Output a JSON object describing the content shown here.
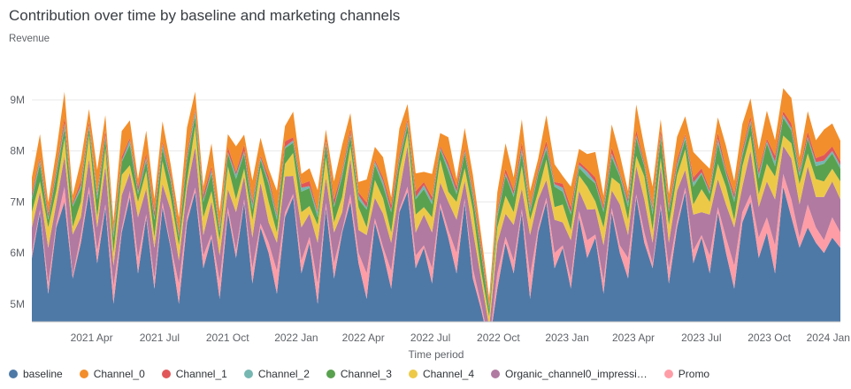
{
  "chart_data": {
    "type": "area",
    "stacked": true,
    "title": "Contribution over time by baseline and marketing channels",
    "ylabel": "Revenue",
    "xlabel": "Time period",
    "legend_position": "bottom",
    "grid": true,
    "y_range": [
      4.65,
      9.85
    ],
    "y_unit": "M",
    "y_ticks": [
      {
        "label": "5M",
        "v": 5
      },
      {
        "label": "6M",
        "v": 6
      },
      {
        "label": "7M",
        "v": 7
      },
      {
        "label": "8M",
        "v": 8
      },
      {
        "label": "9M",
        "v": 9
      }
    ],
    "x_ticks": [
      {
        "label": "2021 Apr",
        "f": 0.074
      },
      {
        "label": "2021 Jul",
        "f": 0.158
      },
      {
        "label": "2021 Oct",
        "f": 0.242
      },
      {
        "label": "2022 Jan",
        "f": 0.327
      },
      {
        "label": "2022 Apr",
        "f": 0.41
      },
      {
        "label": "2022 Jul",
        "f": 0.493
      },
      {
        "label": "2022 Oct",
        "f": 0.577
      },
      {
        "label": "2023 Jan",
        "f": 0.662
      },
      {
        "label": "2023 Apr",
        "f": 0.744
      },
      {
        "label": "2023 Jul",
        "f": 0.828
      },
      {
        "label": "2023 Oct",
        "f": 0.912
      },
      {
        "label": "2024 Jan",
        "f": 0.985
      }
    ],
    "legend": [
      {
        "name": "baseline",
        "color": "#4e79a7"
      },
      {
        "name": "Channel_0",
        "color": "#f28e2b"
      },
      {
        "name": "Channel_1",
        "color": "#e15759"
      },
      {
        "name": "Channel_2",
        "color": "#76b7b2"
      },
      {
        "name": "Channel_3",
        "color": "#59a14f"
      },
      {
        "name": "Channel_4",
        "color": "#edc948"
      },
      {
        "name": "Organic_channel0_impressi…",
        "color": "#b07aa1"
      },
      {
        "name": "Promo",
        "color": "#ff9da7"
      }
    ],
    "series": [
      {
        "name": "baseline",
        "color": "#4e79a7",
        "values": [
          5.9,
          6.8,
          5.2,
          6.5,
          7.0,
          5.5,
          6.2,
          7.2,
          5.8,
          6.9,
          5.0,
          6.4,
          7.1,
          5.6,
          6.7,
          5.3,
          6.9,
          6.1,
          5.0,
          6.6,
          7.2,
          5.7,
          6.3,
          5.1,
          6.8,
          5.9,
          7.0,
          5.4,
          6.5,
          6.0,
          5.2,
          6.7,
          7.1,
          5.6,
          6.2,
          5.0,
          6.9,
          5.5,
          6.4,
          7.0,
          5.8,
          5.1,
          6.6,
          6.0,
          5.3,
          6.8,
          7.2,
          5.7,
          6.1,
          5.4,
          6.9,
          6.3,
          5.6,
          7.0,
          5.5,
          4.9,
          4.2,
          5.3,
          6.2,
          5.6,
          6.8,
          5.1,
          6.4,
          7.0,
          5.7,
          6.1,
          5.3,
          6.7,
          5.9,
          6.3,
          5.2,
          6.8,
          6.0,
          5.5,
          7.1,
          6.2,
          5.7,
          6.9,
          5.4,
          6.5,
          7.2,
          5.8,
          6.3,
          5.6,
          6.8,
          6.0,
          5.3,
          6.6,
          7.0,
          5.9,
          6.4,
          5.6,
          7.3,
          6.7,
          6.1,
          6.5,
          6.2,
          6.0,
          6.3,
          6.1
        ]
      },
      {
        "name": "Promo",
        "color": "#ff9da7",
        "values": [
          0.1,
          0.05,
          0.2,
          0.08,
          0.3,
          0.06,
          0.15,
          0.1,
          0.25,
          0.05,
          0.35,
          0.08,
          0.12,
          0.3,
          0.06,
          0.2,
          0.1,
          0.05,
          0.4,
          0.12,
          0.08,
          0.25,
          0.06,
          0.35,
          0.1,
          0.15,
          0.05,
          0.3,
          0.08,
          0.2,
          0.45,
          0.1,
          0.06,
          0.25,
          0.12,
          0.4,
          0.08,
          0.3,
          0.05,
          0.15,
          0.2,
          0.5,
          0.08,
          0.12,
          0.35,
          0.06,
          0.1,
          0.25,
          0.05,
          0.3,
          0.08,
          0.15,
          0.4,
          0.06,
          0.2,
          0.1,
          0.05,
          0.3,
          0.12,
          0.25,
          0.06,
          0.45,
          0.1,
          0.08,
          0.3,
          0.05,
          0.2,
          0.12,
          0.35,
          0.06,
          0.25,
          0.08,
          0.15,
          0.4,
          0.05,
          0.2,
          0.1,
          0.06,
          0.3,
          0.12,
          0.08,
          0.25,
          0.05,
          0.35,
          0.1,
          0.3,
          0.45,
          0.2,
          0.15,
          0.4,
          0.3,
          0.55,
          0.25,
          0.35,
          0.2,
          0.45,
          0.3,
          0.25,
          0.4,
          0.3
        ]
      },
      {
        "name": "Organic_channel0_impressi…",
        "color": "#b07aa1",
        "values": [
          0.5,
          0.35,
          0.7,
          0.4,
          0.6,
          0.8,
          0.35,
          0.55,
          0.45,
          0.75,
          0.4,
          0.65,
          0.35,
          0.8,
          0.5,
          0.6,
          0.35,
          0.7,
          0.45,
          0.55,
          0.8,
          0.4,
          0.65,
          0.5,
          0.35,
          0.75,
          0.45,
          0.6,
          0.8,
          0.4,
          0.55,
          0.7,
          0.35,
          0.65,
          0.45,
          0.8,
          0.5,
          0.6,
          0.35,
          0.7,
          0.45,
          0.75,
          0.4,
          0.65,
          0.55,
          0.35,
          0.8,
          0.45,
          0.6,
          0.7,
          0.4,
          0.55,
          0.65,
          0.35,
          0.75,
          0.5,
          0.3,
          0.6,
          0.45,
          0.7,
          0.4,
          0.8,
          0.55,
          0.35,
          0.65,
          0.45,
          0.75,
          0.4,
          0.6,
          0.5,
          0.7,
          0.35,
          0.8,
          0.45,
          0.55,
          0.65,
          0.4,
          0.75,
          0.5,
          0.6,
          0.35,
          0.7,
          0.45,
          0.8,
          0.55,
          0.65,
          0.75,
          0.5,
          0.85,
          0.6,
          0.7,
          0.9,
          0.55,
          0.8,
          0.65,
          0.75,
          0.6,
          0.85,
          0.7,
          0.65
        ]
      },
      {
        "name": "Channel_4",
        "color": "#edc948",
        "values": [
          0.3,
          0.2,
          0.4,
          0.25,
          0.35,
          0.15,
          0.3,
          0.45,
          0.2,
          0.35,
          0.25,
          0.4,
          0.15,
          0.3,
          0.35,
          0.2,
          0.45,
          0.25,
          0.3,
          0.15,
          0.4,
          0.35,
          0.2,
          0.3,
          0.45,
          0.25,
          0.15,
          0.35,
          0.3,
          0.4,
          0.2,
          0.25,
          0.45,
          0.3,
          0.15,
          0.35,
          0.4,
          0.2,
          0.3,
          0.25,
          0.45,
          0.15,
          0.35,
          0.3,
          0.2,
          0.4,
          0.25,
          0.35,
          0.15,
          0.3,
          0.45,
          0.2,
          0.35,
          0.25,
          0.4,
          0.15,
          0.2,
          0.3,
          0.35,
          0.25,
          0.45,
          0.3,
          0.15,
          0.4,
          0.25,
          0.35,
          0.2,
          0.3,
          0.45,
          0.15,
          0.35,
          0.25,
          0.4,
          0.3,
          0.2,
          0.45,
          0.25,
          0.15,
          0.35,
          0.3,
          0.4,
          0.2,
          0.45,
          0.25,
          0.3,
          0.35,
          0.15,
          0.4,
          0.3,
          0.25,
          0.35,
          0.45,
          0.2,
          0.3,
          0.4,
          0.25,
          0.35,
          0.3,
          0.25,
          0.35
        ]
      },
      {
        "name": "Channel_3",
        "color": "#59a14f",
        "values": [
          0.25,
          0.35,
          0.15,
          0.3,
          0.2,
          0.4,
          0.25,
          0.15,
          0.35,
          0.2,
          0.3,
          0.25,
          0.4,
          0.15,
          0.2,
          0.35,
          0.25,
          0.3,
          0.15,
          0.4,
          0.2,
          0.3,
          0.35,
          0.15,
          0.25,
          0.4,
          0.3,
          0.2,
          0.15,
          0.35,
          0.25,
          0.3,
          0.2,
          0.4,
          0.35,
          0.15,
          0.25,
          0.3,
          0.4,
          0.2,
          0.15,
          0.35,
          0.3,
          0.25,
          0.4,
          0.2,
          0.15,
          0.3,
          0.35,
          0.25,
          0.2,
          0.4,
          0.15,
          0.3,
          0.25,
          0.35,
          0.15,
          0.2,
          0.4,
          0.3,
          0.25,
          0.15,
          0.35,
          0.2,
          0.4,
          0.25,
          0.3,
          0.15,
          0.2,
          0.35,
          0.3,
          0.4,
          0.15,
          0.25,
          0.35,
          0.2,
          0.3,
          0.4,
          0.25,
          0.15,
          0.2,
          0.35,
          0.3,
          0.15,
          0.4,
          0.25,
          0.35,
          0.2,
          0.25,
          0.3,
          0.4,
          0.2,
          0.35,
          0.25,
          0.15,
          0.3,
          0.25,
          0.35,
          0.3,
          0.25
        ]
      },
      {
        "name": "Channel_2",
        "color": "#76b7b2",
        "values": [
          0.05,
          0.08,
          0.04,
          0.06,
          0.09,
          0.03,
          0.07,
          0.05,
          0.08,
          0.04,
          0.06,
          0.03,
          0.09,
          0.05,
          0.07,
          0.04,
          0.08,
          0.06,
          0.03,
          0.05,
          0.09,
          0.04,
          0.07,
          0.06,
          0.03,
          0.08,
          0.05,
          0.09,
          0.04,
          0.06,
          0.07,
          0.03,
          0.05,
          0.08,
          0.04,
          0.09,
          0.06,
          0.03,
          0.07,
          0.05,
          0.08,
          0.04,
          0.06,
          0.09,
          0.03,
          0.05,
          0.07,
          0.04,
          0.08,
          0.06,
          0.03,
          0.09,
          0.05,
          0.04,
          0.07,
          0.06,
          0.03,
          0.08,
          0.04,
          0.05,
          0.09,
          0.06,
          0.03,
          0.07,
          0.05,
          0.08,
          0.04,
          0.06,
          0.09,
          0.03,
          0.05,
          0.07,
          0.04,
          0.08,
          0.06,
          0.03,
          0.09,
          0.05,
          0.04,
          0.07,
          0.06,
          0.08,
          0.03,
          0.05,
          0.09,
          0.04,
          0.07,
          0.06,
          0.05,
          0.08,
          0.04,
          0.09,
          0.06,
          0.05,
          0.07,
          0.03,
          0.08,
          0.06,
          0.05,
          0.07
        ]
      },
      {
        "name": "Channel_1",
        "color": "#e15759",
        "values": [
          0.08,
          0.05,
          0.1,
          0.06,
          0.12,
          0.04,
          0.09,
          0.07,
          0.05,
          0.11,
          0.06,
          0.08,
          0.04,
          0.1,
          0.07,
          0.12,
          0.05,
          0.08,
          0.06,
          0.09,
          0.04,
          0.11,
          0.07,
          0.05,
          0.1,
          0.06,
          0.12,
          0.08,
          0.04,
          0.09,
          0.05,
          0.11,
          0.06,
          0.07,
          0.1,
          0.04,
          0.08,
          0.12,
          0.05,
          0.09,
          0.06,
          0.1,
          0.04,
          0.07,
          0.11,
          0.08,
          0.05,
          0.12,
          0.06,
          0.09,
          0.04,
          0.08,
          0.1,
          0.05,
          0.07,
          0.11,
          0.04,
          0.06,
          0.09,
          0.08,
          0.12,
          0.05,
          0.07,
          0.1,
          0.04,
          0.08,
          0.11,
          0.06,
          0.05,
          0.09,
          0.07,
          0.12,
          0.04,
          0.08,
          0.1,
          0.05,
          0.06,
          0.11,
          0.07,
          0.09,
          0.04,
          0.1,
          0.08,
          0.05,
          0.12,
          0.06,
          0.09,
          0.07,
          0.08,
          0.1,
          0.05,
          0.12,
          0.07,
          0.09,
          0.06,
          0.1,
          0.08,
          0.11,
          0.09,
          0.08
        ]
      },
      {
        "name": "Channel_0",
        "color": "#f28e2b",
        "values": [
          0.3,
          0.45,
          0.2,
          0.35,
          0.5,
          0.15,
          0.4,
          0.25,
          0.45,
          0.3,
          0.2,
          0.5,
          0.35,
          0.15,
          0.45,
          0.25,
          0.4,
          0.2,
          0.3,
          0.5,
          0.35,
          0.15,
          0.45,
          0.3,
          0.25,
          0.5,
          0.2,
          0.4,
          0.35,
          0.15,
          0.45,
          0.3,
          0.5,
          0.2,
          0.25,
          0.4,
          0.15,
          0.35,
          0.5,
          0.3,
          0.2,
          0.45,
          0.25,
          0.4,
          0.15,
          0.5,
          0.3,
          0.35,
          0.2,
          0.45,
          0.25,
          0.5,
          0.15,
          0.4,
          0.3,
          0.2,
          0.15,
          0.35,
          0.5,
          0.25,
          0.45,
          0.3,
          0.2,
          0.5,
          0.35,
          0.15,
          0.4,
          0.25,
          0.3,
          0.5,
          0.2,
          0.45,
          0.35,
          0.15,
          0.5,
          0.3,
          0.4,
          0.2,
          0.25,
          0.45,
          0.35,
          0.5,
          0.15,
          0.4,
          0.3,
          0.45,
          0.25,
          0.5,
          0.35,
          0.4,
          0.55,
          0.3,
          0.45,
          0.5,
          0.25,
          0.4,
          0.35,
          0.5,
          0.45,
          0.4
        ]
      }
    ]
  }
}
